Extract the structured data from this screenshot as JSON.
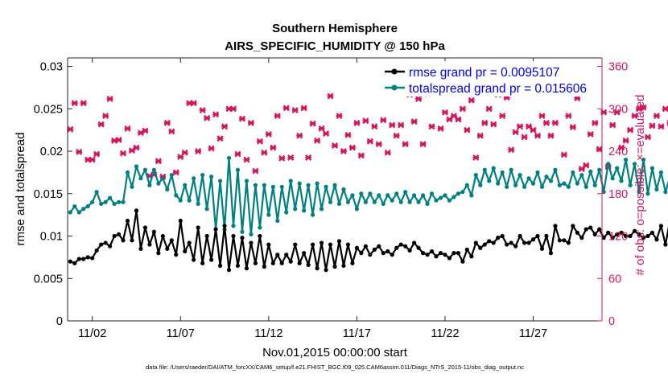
{
  "chart_data": {
    "type": "line",
    "title_line1": "Southern Hemisphere",
    "title_line2": "AIRS_SPECIFIC_HUMIDITY @ 150 hPa",
    "xlabel": "Nov.01,2015 00:00:00 start",
    "ylabel_left": "rmse and totalspread",
    "ylabel_right": "# of obs: o=possible; ×=evaluated",
    "footnote": "data file: /Users/raeder/DAI/ATM_forcXX/CAM6_setup/f.e21.FHIST_BGC.f09_025.CAM6assim.011/Diags_NTrS_2015-11/obs_diag_output.nc",
    "x_range_days": [
      0.6,
      30.9
    ],
    "ylim_left": [
      0,
      0.031
    ],
    "ylim_right": [
      0,
      372
    ],
    "xtick_positions": [
      2,
      7,
      12,
      17,
      22,
      27
    ],
    "xtick_labels": [
      "11/02",
      "11/07",
      "11/12",
      "11/17",
      "11/22",
      "11/27"
    ],
    "ytick_left_values": [
      0,
      0.005,
      0.01,
      0.015,
      0.02,
      0.025,
      0.03
    ],
    "ytick_left_labels": [
      "0",
      "0.005",
      "0.01",
      "0.015",
      "0.02",
      "0.025",
      "0.03"
    ],
    "ytick_right_values": [
      0,
      60,
      120,
      180,
      240,
      300,
      360
    ],
    "ytick_right_labels": [
      "0",
      "60",
      "120",
      "180",
      "240",
      "300",
      "360"
    ],
    "colors": {
      "rmse": "#000000",
      "spread": "#008080",
      "obs": "#d6155f",
      "legend_text": "#0000ee"
    },
    "legend": [
      {
        "name": "rmse",
        "label": "rmse grand pr = 0.0095107"
      },
      {
        "name": "spread",
        "label": "totalspread grand pr = 0.015606"
      }
    ],
    "obs_x_start_day": 0.75,
    "obs_x_step_days": 0.25,
    "rmse": [
      0.007,
      0.0068,
      0.0073,
      0.0073,
      0.0075,
      0.0074,
      0.0083,
      0.009,
      0.0092,
      0.0088,
      0.01,
      0.0102,
      0.0095,
      0.0118,
      0.0095,
      0.013,
      0.0085,
      0.011,
      0.009,
      0.0105,
      0.008,
      0.01,
      0.0085,
      0.0095,
      0.0078,
      0.0118,
      0.0082,
      0.0092,
      0.0072,
      0.011,
      0.0068,
      0.01,
      0.0072,
      0.0108,
      0.0065,
      0.0112,
      0.006,
      0.01,
      0.0065,
      0.0098,
      0.0062,
      0.0092,
      0.0068,
      0.01,
      0.0064,
      0.009,
      0.0068,
      0.0078,
      0.0068,
      0.0078,
      0.007,
      0.009,
      0.0068,
      0.008,
      0.0066,
      0.009,
      0.0062,
      0.0092,
      0.006,
      0.009,
      0.0064,
      0.0094,
      0.0065,
      0.009,
      0.0068,
      0.0086,
      0.008,
      0.0088,
      0.0078,
      0.0084,
      0.0088,
      0.008,
      0.0082,
      0.0078,
      0.0086,
      0.009,
      0.0088,
      0.0083,
      0.0092,
      0.0086,
      0.008,
      0.0078,
      0.0082,
      0.0076,
      0.008,
      0.0078,
      0.0074,
      0.008,
      0.008,
      0.007,
      0.0084,
      0.0076,
      0.0092,
      0.0086,
      0.009,
      0.0094,
      0.0092,
      0.0098,
      0.01,
      0.009,
      0.0092,
      0.0088,
      0.01,
      0.0092,
      0.0092,
      0.0096,
      0.01,
      0.0085,
      0.01,
      0.008,
      0.0112,
      0.0095,
      0.0095,
      0.0092,
      0.0112,
      0.0104,
      0.0098,
      0.0108,
      0.011,
      0.0102,
      0.0108,
      0.0098,
      0.0104,
      0.0098,
      0.0102,
      0.0104,
      0.01,
      0.01,
      0.0106,
      0.0102,
      0.0098,
      0.01,
      0.0104,
      0.0096,
      0.0112,
      0.009,
      0.0118,
      0.0082,
      0.0108,
      0.009,
      0.012,
      0.0092,
      0.0128,
      0.008,
      0.0132,
      0.0088,
      0.012,
      0.0082,
      0.0122,
      0.0082,
      0.0102,
      0.008,
      0.015,
      0.0082,
      0.0138,
      0.009,
      0.0108,
      0.0094,
      0.01,
      0.0095,
      0.01,
      0.0082,
      0.0096,
      0.0088,
      0.01,
      0.0094,
      0.0103,
      0.0086,
      0.009,
      0.0093,
      0.009
    ],
    "spread": [
      0.0128,
      0.0135,
      0.0128,
      0.0132,
      0.0135,
      0.014,
      0.0152,
      0.0138,
      0.014,
      0.0145,
      0.0138,
      0.014,
      0.014,
      0.0175,
      0.0158,
      0.0182,
      0.0168,
      0.0178,
      0.016,
      0.0178,
      0.0162,
      0.0168,
      0.0155,
      0.0172,
      0.0148,
      0.0142,
      0.016,
      0.0142,
      0.0168,
      0.0138,
      0.0172,
      0.0132,
      0.017,
      0.0108,
      0.0165,
      0.0108,
      0.0192,
      0.0112,
      0.0178,
      0.0105,
      0.0165,
      0.0102,
      0.016,
      0.011,
      0.016,
      0.0125,
      0.0158,
      0.0118,
      0.0158,
      0.0128,
      0.0165,
      0.0132,
      0.0162,
      0.013,
      0.016,
      0.0125,
      0.0162,
      0.0132,
      0.0158,
      0.014,
      0.016,
      0.0138,
      0.0155,
      0.014,
      0.0148,
      0.0132,
      0.015,
      0.014,
      0.015,
      0.014,
      0.0148,
      0.0138,
      0.0148,
      0.0142,
      0.015,
      0.014,
      0.0152,
      0.014,
      0.0148,
      0.014,
      0.0148,
      0.0138,
      0.015,
      0.0142,
      0.0145,
      0.0148,
      0.0142,
      0.0146,
      0.015,
      0.0152,
      0.016,
      0.0148,
      0.0172,
      0.016,
      0.0178,
      0.0165,
      0.018,
      0.0162,
      0.0175,
      0.0158,
      0.0178,
      0.016,
      0.0172,
      0.0158,
      0.0168,
      0.0162,
      0.0175,
      0.0158,
      0.017,
      0.0165,
      0.0178,
      0.016,
      0.0162,
      0.0158,
      0.0175,
      0.0162,
      0.0172,
      0.0158,
      0.0176,
      0.016,
      0.0178,
      0.0152,
      0.0185,
      0.0168,
      0.018,
      0.0165,
      0.019,
      0.016,
      0.0185,
      0.0152,
      0.019,
      0.015,
      0.018,
      0.0155,
      0.0175,
      0.0152,
      0.017,
      0.0158,
      0.018,
      0.0162,
      0.0182,
      0.016,
      0.0175,
      0.0158,
      0.0178,
      0.0152,
      0.0185,
      0.015,
      0.0162,
      0.0148,
      0.0205,
      0.0145,
      0.02,
      0.0145,
      0.018,
      0.0158,
      0.0182,
      0.0162,
      0.017,
      0.016,
      0.0172,
      0.0165,
      0.0172,
      0.0168,
      0.0172,
      0.0162,
      0.018,
      0.0165,
      0.0162
    ],
    "obs": [
      271,
      308,
      239,
      308,
      228,
      228,
      236,
      278,
      290,
      314,
      255,
      256,
      237,
      272,
      241,
      245,
      266,
      269,
      205,
      207,
      226,
      204,
      280,
      268,
      210,
      232,
      238,
      308,
      308,
      240,
      298,
      287,
      244,
      292,
      258,
      275,
      300,
      300,
      236,
      286,
      228,
      280,
      212,
      254,
      238,
      264,
      245,
      290,
      230,
      301,
      231,
      298,
      262,
      301,
      231,
      279,
      255,
      272,
      265,
      318,
      248,
      290,
      240,
      263,
      245,
      280,
      234,
      283,
      254,
      275,
      250,
      284,
      238,
      277,
      262,
      277,
      250,
      320,
      282,
      314,
      250,
      321,
      275,
      330,
      272,
      295,
      285,
      290,
      285,
      300,
      270,
      312,
      231,
      262,
      280,
      300,
      278,
      320,
      290,
      316,
      242,
      267,
      275,
      260,
      275,
      270,
      262,
      290,
      280,
      262,
      280,
      330,
      235,
      290,
      274,
      315,
      215,
      220,
      264,
      280,
      243,
      295,
      218,
      277,
      295,
      245,
      255,
      270,
      290,
      300,
      302,
      260,
      276,
      290,
      275,
      300,
      280,
      270,
      290,
      278,
      310,
      280,
      301,
      280,
      304,
      262,
      278,
      262,
      290,
      286,
      301,
      280,
      286,
      276,
      295,
      290,
      312,
      284,
      318,
      305,
      270,
      320,
      285,
      312,
      287,
      283,
      310,
      305,
      320,
      290,
      322,
      272,
      282
    ]
  }
}
